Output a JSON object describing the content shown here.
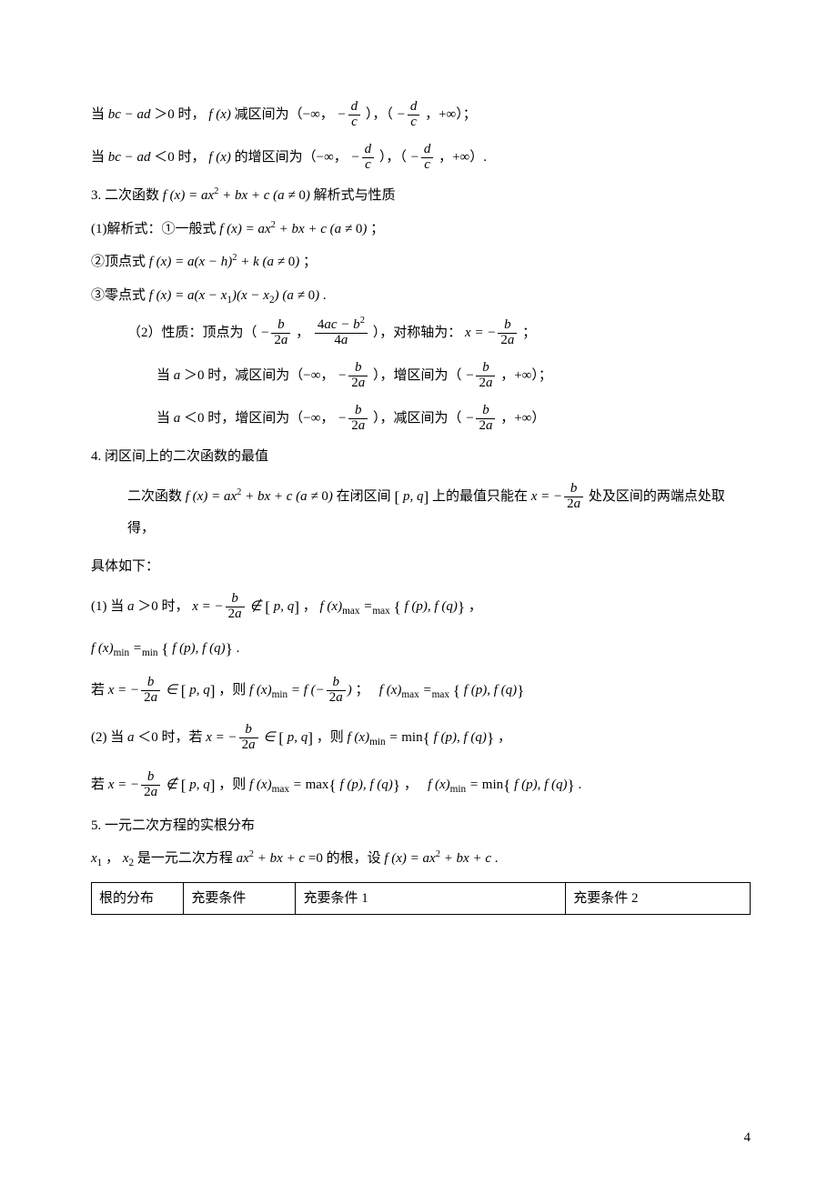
{
  "page_number": "4",
  "line1_a": "当",
  "line1_b": "＞0 时，",
  "line1_c": " 减区间为（−∞，",
  "line1_d": "），（",
  "line1_e": "，+∞）；",
  "line2_a": "当",
  "line2_b": "＜0 时，",
  "line2_c": " 的增区间为（−∞，",
  "line2_d": "），（",
  "line2_e": "，+∞）.",
  "sec3_title": "3. 二次函数 ",
  "sec3_title2": " 解析式与性质",
  "sec3_1a": "(1)解析式：①一般式 ",
  "sec3_1b": " ；",
  "sec3_2a": "②顶点式 ",
  "sec3_2b": " ；",
  "sec3_3a": "③零点式 ",
  "sec3_3b": " .",
  "sec3_prop_a": "（2）性质：顶点为（",
  "sec3_prop_b": "，",
  "sec3_prop_c": "），对称轴为：",
  "sec3_prop_d": "；",
  "sec3_prop2a": "当",
  "sec3_prop2b": "＞0 时，减区间为（−∞，",
  "sec3_prop2c": "），增区间为（",
  "sec3_prop2d": "，+∞）；",
  "sec3_prop3a": "当",
  "sec3_prop3b": "＜0 时，增区间为（−∞，",
  "sec3_prop3c": "），减区间为（",
  "sec3_prop3d": "，+∞）",
  "sec4_title": "4. 闭区间上的二次函数的最值",
  "sec4_l1a": "二次函数 ",
  "sec4_l1b": " 在闭区间",
  "sec4_l1c": "上的最值只能在",
  "sec4_l1d": "处及区间的两端点处取得，",
  "sec4_l2": "具体如下：",
  "sec4_c1a": "(1) 当",
  "sec4_c1b": "＞0 时，",
  "sec4_c1c": "，",
  "sec4_c1d": " ，",
  "sec4_c1e": " .",
  "sec4_c1f": "若",
  "sec4_c1g": "，则",
  "sec4_c1h": "；",
  "sec4_c2a": "(2) 当",
  "sec4_c2b": "＜0 时，若",
  "sec4_c2c": "，则",
  "sec4_c2d": " ，",
  "sec4_c2e": "若",
  "sec4_c2f": "，则",
  "sec4_c2g": " ，",
  "sec4_c2h": " .",
  "sec5_title": "5. 一元二次方程的实根分布",
  "sec5_l1a": "，",
  "sec5_l1b": "是一元二次方程",
  "sec5_l1c": "=0 的根，设",
  "sec5_l1d": " .",
  "table": {
    "h1": "根的分布",
    "h2": "充要条件",
    "h3": "充要条件 1",
    "h4": "充要条件 2"
  },
  "colors": {
    "text": "#000000",
    "bg": "#ffffff",
    "border": "#000000"
  }
}
